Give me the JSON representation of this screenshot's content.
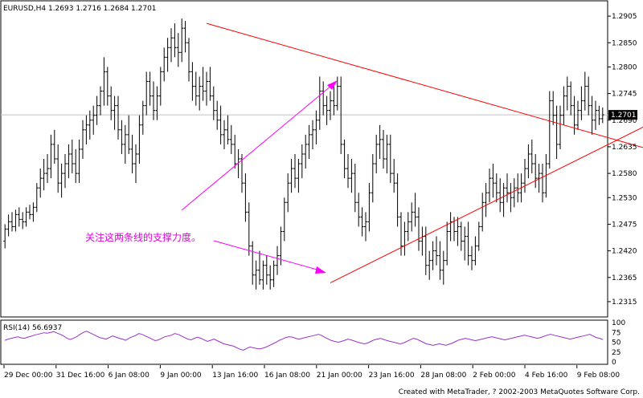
{
  "chart_data": {
    "type": "candlestick",
    "header": "EURUSD,H4  1.2693 1.2716 1.2684 1.2701",
    "symbol": "EURUSD",
    "timeframe": "H4",
    "ohlc_last": {
      "open": 1.2693,
      "high": 1.2716,
      "low": 1.2684,
      "close": 1.2701
    },
    "price_labels": [
      "1.2905",
      "1.2850",
      "1.2800",
      "1.2745",
      "1.2690",
      "1.2635",
      "1.2580",
      "1.2530",
      "1.2475",
      "1.2420",
      "1.2365",
      "1.2315"
    ],
    "price_values": [
      1.2905,
      1.285,
      1.28,
      1.2745,
      1.269,
      1.2635,
      1.258,
      1.253,
      1.2475,
      1.242,
      1.2365,
      1.2315
    ],
    "current_price": "1.2701",
    "ylim": [
      1.229,
      1.293
    ],
    "time_labels": [
      "29 Dec 00:00",
      "31 Dec 16:00",
      "6 Jan 08:00",
      "9 Jan 00:00",
      "13 Jan 16:00",
      "16 Jan 08:00",
      "21 Jan 00:00",
      "23 Jan 16:00",
      "28 Jan 08:00",
      "2 Feb 00:00",
      "4 Feb 16:00",
      "9 Feb 08:00"
    ],
    "bars": [
      [
        1.244,
        1.2475,
        1.2425,
        1.2465
      ],
      [
        1.2465,
        1.2495,
        1.245,
        1.248
      ],
      [
        1.248,
        1.25,
        1.246,
        1.247
      ],
      [
        1.247,
        1.2505,
        1.246,
        1.2495
      ],
      [
        1.2495,
        1.251,
        1.247,
        1.2485
      ],
      [
        1.2485,
        1.25,
        1.2465,
        1.248
      ],
      [
        1.248,
        1.251,
        1.247,
        1.25
      ],
      [
        1.25,
        1.2515,
        1.2485,
        1.2495
      ],
      [
        1.2495,
        1.252,
        1.248,
        1.251
      ],
      [
        1.251,
        1.256,
        1.25,
        1.255
      ],
      [
        1.255,
        1.259,
        1.253,
        1.257
      ],
      [
        1.257,
        1.261,
        1.2545,
        1.258
      ],
      [
        1.258,
        1.262,
        1.256,
        1.259
      ],
      [
        1.259,
        1.266,
        1.257,
        1.264
      ],
      [
        1.264,
        1.267,
        1.26,
        1.261
      ],
      [
        1.261,
        1.264,
        1.254,
        1.256
      ],
      [
        1.256,
        1.26,
        1.253,
        1.258
      ],
      [
        1.258,
        1.262,
        1.255,
        1.26
      ],
      [
        1.26,
        1.264,
        1.257,
        1.262
      ],
      [
        1.262,
        1.265,
        1.258,
        1.26
      ],
      [
        1.26,
        1.263,
        1.256,
        1.258
      ],
      [
        1.258,
        1.265,
        1.256,
        1.263
      ],
      [
        1.263,
        1.269,
        1.261,
        1.267
      ],
      [
        1.267,
        1.27,
        1.264,
        1.268
      ],
      [
        1.268,
        1.271,
        1.265,
        1.269
      ],
      [
        1.269,
        1.272,
        1.266,
        1.27
      ],
      [
        1.27,
        1.274,
        1.268,
        1.272
      ],
      [
        1.272,
        1.276,
        1.27,
        1.275
      ],
      [
        1.275,
        1.282,
        1.272,
        1.279
      ],
      [
        1.279,
        1.28,
        1.272,
        1.274
      ],
      [
        1.274,
        1.276,
        1.269,
        1.271
      ],
      [
        1.271,
        1.274,
        1.267,
        1.272
      ],
      [
        1.272,
        1.274,
        1.265,
        1.267
      ],
      [
        1.267,
        1.269,
        1.262,
        1.264
      ],
      [
        1.264,
        1.268,
        1.26,
        1.266
      ],
      [
        1.266,
        1.27,
        1.262,
        1.263
      ],
      [
        1.263,
        1.266,
        1.258,
        1.26
      ],
      [
        1.26,
        1.264,
        1.256,
        1.262
      ],
      [
        1.262,
        1.27,
        1.26,
        1.268
      ],
      [
        1.268,
        1.273,
        1.266,
        1.272
      ],
      [
        1.272,
        1.279,
        1.27,
        1.277
      ],
      [
        1.277,
        1.279,
        1.272,
        1.274
      ],
      [
        1.274,
        1.277,
        1.269,
        1.271
      ],
      [
        1.271,
        1.276,
        1.269,
        1.274
      ],
      [
        1.274,
        1.28,
        1.272,
        1.279
      ],
      [
        1.279,
        1.284,
        1.277,
        1.282
      ],
      [
        1.282,
        1.286,
        1.279,
        1.284
      ],
      [
        1.284,
        1.288,
        1.281,
        1.286
      ],
      [
        1.286,
        1.289,
        1.282,
        1.284
      ],
      [
        1.284,
        1.287,
        1.28,
        1.283
      ],
      [
        1.283,
        1.29,
        1.281,
        1.288
      ],
      [
        1.288,
        1.2895,
        1.283,
        1.285
      ],
      [
        1.285,
        1.286,
        1.277,
        1.279
      ],
      [
        1.279,
        1.281,
        1.273,
        1.276
      ],
      [
        1.276,
        1.279,
        1.272,
        1.274
      ],
      [
        1.274,
        1.278,
        1.271,
        1.276
      ],
      [
        1.276,
        1.28,
        1.273,
        1.275
      ],
      [
        1.275,
        1.279,
        1.272,
        1.277
      ],
      [
        1.277,
        1.28,
        1.273,
        1.274
      ],
      [
        1.274,
        1.276,
        1.269,
        1.271
      ],
      [
        1.271,
        1.273,
        1.267,
        1.269
      ],
      [
        1.269,
        1.272,
        1.264,
        1.266
      ],
      [
        1.266,
        1.269,
        1.263,
        1.267
      ],
      [
        1.267,
        1.27,
        1.264,
        1.265
      ],
      [
        1.265,
        1.268,
        1.262,
        1.264
      ],
      [
        1.264,
        1.266,
        1.259,
        1.26
      ],
      [
        1.26,
        1.263,
        1.257,
        1.261
      ],
      [
        1.261,
        1.262,
        1.254,
        1.256
      ],
      [
        1.256,
        1.258,
        1.248,
        1.25
      ],
      [
        1.25,
        1.252,
        1.241,
        1.243
      ],
      [
        1.243,
        1.244,
        1.235,
        1.237
      ],
      [
        1.237,
        1.24,
        1.234,
        1.238
      ],
      [
        1.238,
        1.242,
        1.235,
        1.236
      ],
      [
        1.236,
        1.24,
        1.234,
        1.239
      ],
      [
        1.239,
        1.241,
        1.235,
        1.237
      ],
      [
        1.237,
        1.239,
        1.234,
        1.236
      ],
      [
        1.236,
        1.24,
        1.2345,
        1.239
      ],
      [
        1.239,
        1.243,
        1.237,
        1.241
      ],
      [
        1.241,
        1.247,
        1.239,
        1.246
      ],
      [
        1.246,
        1.253,
        1.244,
        1.252
      ],
      [
        1.252,
        1.258,
        1.25,
        1.256
      ],
      [
        1.256,
        1.261,
        1.254,
        1.259
      ],
      [
        1.259,
        1.262,
        1.255,
        1.257
      ],
      [
        1.257,
        1.261,
        1.254,
        1.26
      ],
      [
        1.26,
        1.264,
        1.257,
        1.262
      ],
      [
        1.262,
        1.266,
        1.259,
        1.264
      ],
      [
        1.264,
        1.268,
        1.261,
        1.266
      ],
      [
        1.266,
        1.269,
        1.263,
        1.267
      ],
      [
        1.267,
        1.271,
        1.264,
        1.269
      ],
      [
        1.269,
        1.278,
        1.267,
        1.275
      ],
      [
        1.275,
        1.277,
        1.27,
        1.272
      ],
      [
        1.272,
        1.274,
        1.268,
        1.271
      ],
      [
        1.271,
        1.275,
        1.269,
        1.273
      ],
      [
        1.273,
        1.276,
        1.27,
        1.272
      ],
      [
        1.272,
        1.278,
        1.271,
        1.276
      ],
      [
        1.276,
        1.278,
        1.262,
        1.264
      ],
      [
        1.264,
        1.265,
        1.257,
        1.259
      ],
      [
        1.259,
        1.262,
        1.255,
        1.257
      ],
      [
        1.257,
        1.261,
        1.254,
        1.258
      ],
      [
        1.258,
        1.26,
        1.25,
        1.252
      ],
      [
        1.252,
        1.254,
        1.247,
        1.249
      ],
      [
        1.249,
        1.251,
        1.245,
        1.247
      ],
      [
        1.247,
        1.25,
        1.244,
        1.248
      ],
      [
        1.248,
        1.256,
        1.246,
        1.254
      ],
      [
        1.254,
        1.262,
        1.252,
        1.26
      ],
      [
        1.26,
        1.266,
        1.258,
        1.264
      ],
      [
        1.264,
        1.268,
        1.261,
        1.265
      ],
      [
        1.265,
        1.267,
        1.259,
        1.261
      ],
      [
        1.261,
        1.266,
        1.258,
        1.264
      ],
      [
        1.264,
        1.266,
        1.256,
        1.258
      ],
      [
        1.258,
        1.261,
        1.254,
        1.256
      ],
      [
        1.256,
        1.258,
        1.247,
        1.249
      ],
      [
        1.249,
        1.25,
        1.241,
        1.243
      ],
      [
        1.243,
        1.248,
        1.241,
        1.246
      ],
      [
        1.246,
        1.25,
        1.244,
        1.248
      ],
      [
        1.248,
        1.252,
        1.246,
        1.25
      ],
      [
        1.25,
        1.254,
        1.247,
        1.249
      ],
      [
        1.249,
        1.251,
        1.242,
        1.244
      ],
      [
        1.244,
        1.247,
        1.241,
        1.245
      ],
      [
        1.245,
        1.247,
        1.237,
        1.239
      ],
      [
        1.239,
        1.242,
        1.236,
        1.24
      ],
      [
        1.24,
        1.244,
        1.238,
        1.242
      ],
      [
        1.242,
        1.245,
        1.239,
        1.241
      ],
      [
        1.241,
        1.244,
        1.236,
        1.238
      ],
      [
        1.238,
        1.242,
        1.235,
        1.24
      ],
      [
        1.24,
        1.248,
        1.239,
        1.246
      ],
      [
        1.246,
        1.25,
        1.244,
        1.248
      ],
      [
        1.248,
        1.249,
        1.244,
        1.246
      ],
      [
        1.246,
        1.249,
        1.243,
        1.247
      ],
      [
        1.247,
        1.248,
        1.242,
        1.244
      ],
      [
        1.244,
        1.247,
        1.24,
        1.245
      ],
      [
        1.245,
        1.248,
        1.239,
        1.241
      ],
      [
        1.241,
        1.243,
        1.238,
        1.24
      ],
      [
        1.24,
        1.245,
        1.239,
        1.243
      ],
      [
        1.243,
        1.248,
        1.242,
        1.247
      ],
      [
        1.247,
        1.254,
        1.246,
        1.252
      ],
      [
        1.252,
        1.256,
        1.249,
        1.254
      ],
      [
        1.254,
        1.259,
        1.252,
        1.257
      ],
      [
        1.257,
        1.26,
        1.253,
        1.256
      ],
      [
        1.256,
        1.258,
        1.252,
        1.254
      ],
      [
        1.254,
        1.257,
        1.25,
        1.252
      ],
      [
        1.252,
        1.256,
        1.249,
        1.255
      ],
      [
        1.255,
        1.258,
        1.252,
        1.254
      ],
      [
        1.254,
        1.256,
        1.25,
        1.253
      ],
      [
        1.253,
        1.257,
        1.251,
        1.255
      ],
      [
        1.255,
        1.258,
        1.252,
        1.254
      ],
      [
        1.254,
        1.258,
        1.252,
        1.256
      ],
      [
        1.256,
        1.261,
        1.254,
        1.259
      ],
      [
        1.259,
        1.264,
        1.257,
        1.262
      ],
      [
        1.262,
        1.265,
        1.258,
        1.26
      ],
      [
        1.26,
        1.262,
        1.255,
        1.257
      ],
      [
        1.257,
        1.26,
        1.254,
        1.258
      ],
      [
        1.258,
        1.26,
        1.252,
        1.254
      ],
      [
        1.254,
        1.262,
        1.253,
        1.26
      ],
      [
        1.26,
        1.275,
        1.259,
        1.273
      ],
      [
        1.273,
        1.275,
        1.268,
        1.27
      ],
      [
        1.27,
        1.272,
        1.261,
        1.264
      ],
      [
        1.264,
        1.272,
        1.263,
        1.27
      ],
      [
        1.27,
        1.276,
        1.268,
        1.274
      ],
      [
        1.274,
        1.278,
        1.271,
        1.276
      ],
      [
        1.276,
        1.277,
        1.27,
        1.272
      ],
      [
        1.272,
        1.274,
        1.266,
        1.268
      ],
      [
        1.268,
        1.273,
        1.267,
        1.271
      ],
      [
        1.271,
        1.276,
        1.269,
        1.273
      ],
      [
        1.273,
        1.279,
        1.271,
        1.276
      ],
      [
        1.276,
        1.278,
        1.27,
        1.272
      ],
      [
        1.272,
        1.274,
        1.266,
        1.269
      ],
      [
        1.269,
        1.273,
        1.267,
        1.271
      ],
      [
        1.271,
        1.272,
        1.268,
        1.2693
      ],
      [
        1.2693,
        1.2716,
        1.2684,
        1.2701
      ]
    ],
    "lines": [
      {
        "name": "resistance-line",
        "color": "#ff0000",
        "from": {
          "bar": 57,
          "price": 1.289
        },
        "to": {
          "bar": 183,
          "price": 1.2628
        }
      },
      {
        "name": "support-line",
        "color": "#ff0000",
        "from": {
          "bar": 92,
          "price": 1.2354
        },
        "to": {
          "bar": 183,
          "price": 1.2685
        }
      }
    ],
    "annotation": "关注这两条线的支撑力度。",
    "indicator": {
      "label": "RSI(14)  56.6937",
      "name": "RSI(14)",
      "value": 56.6937,
      "levels": [
        "100",
        "75",
        "50",
        "25",
        "0"
      ],
      "level_values": [
        100,
        75,
        50,
        25,
        0
      ],
      "color": "#9933cc",
      "values": [
        55,
        58,
        60,
        62,
        64,
        61,
        60,
        63,
        65,
        68,
        70,
        72,
        74,
        73,
        75,
        77,
        73,
        70,
        66,
        60,
        57,
        60,
        64,
        70,
        75,
        78,
        74,
        70,
        66,
        62,
        60,
        58,
        62,
        66,
        63,
        60,
        58,
        55,
        60,
        64,
        67,
        72,
        70,
        66,
        62,
        58,
        54,
        56,
        60,
        64,
        66,
        68,
        72,
        70,
        66,
        62,
        58,
        56,
        60,
        63,
        60,
        56,
        52,
        55,
        58,
        54,
        50,
        46,
        44,
        42,
        40,
        36,
        32,
        30,
        34,
        38,
        36,
        34,
        33,
        35,
        38,
        42,
        46,
        50,
        55,
        58,
        62,
        64,
        63,
        60,
        58,
        60,
        62,
        64,
        66,
        68,
        70,
        67,
        62,
        58,
        54,
        52,
        50,
        52,
        55,
        58,
        56,
        53,
        50,
        48,
        46,
        48,
        52,
        56,
        58,
        60,
        57,
        54,
        52,
        50,
        48,
        46,
        48,
        52,
        56,
        60,
        58,
        54,
        50,
        46,
        44,
        42,
        44,
        46,
        44,
        42,
        45,
        48,
        52,
        56,
        58,
        60,
        58,
        56,
        54,
        56,
        58,
        60,
        62,
        64,
        62,
        60,
        58,
        56,
        58,
        60,
        62,
        64,
        66,
        68,
        66,
        64,
        62,
        60,
        62,
        65,
        68,
        70,
        68,
        66,
        64,
        62,
        60,
        58,
        60,
        62,
        64,
        66,
        68,
        70,
        66,
        62,
        60,
        57
      ]
    }
  },
  "footer": {
    "credit": "Created with MetaTrader, ? 2002-2003 MetaQuotes Software Corp."
  }
}
